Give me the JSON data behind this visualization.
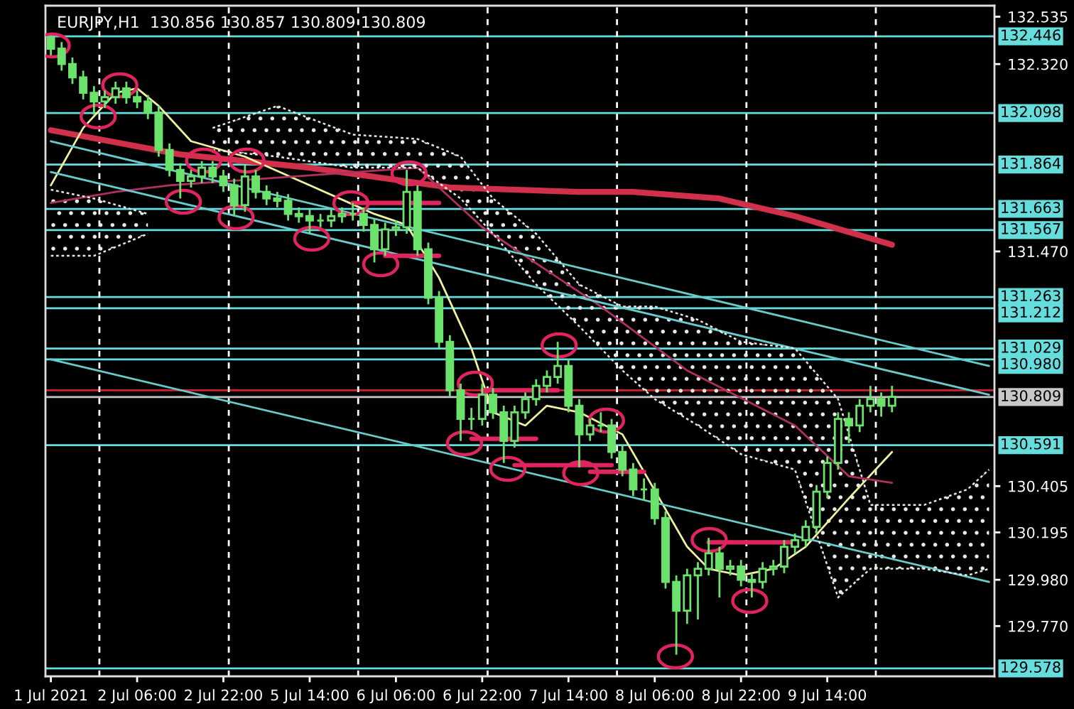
{
  "chart_data": {
    "type": "candlestick",
    "title": "EURJPY,H1  130.856 130.857 130.809 130.809",
    "color": "#6be26b",
    "categories": [
      "1 Jul 2021",
      null,
      null,
      null,
      null,
      null,
      null,
      null,
      "2 Jul 06:00",
      null,
      null,
      null,
      null,
      null,
      null,
      null,
      "2 Jul 22:00",
      null,
      null,
      null,
      null,
      null,
      null,
      null,
      "5 Jul 14:00",
      null,
      null,
      null,
      null,
      null,
      null,
      null,
      "6 Jul 06:00",
      null,
      null,
      null,
      null,
      null,
      null,
      null,
      "6 Jul 22:00",
      null,
      null,
      null,
      null,
      null,
      null,
      null,
      "7 Jul 14:00",
      null,
      null,
      null,
      null,
      null,
      null,
      null,
      "8 Jul 06:00",
      null,
      null,
      null,
      null,
      null,
      null,
      null,
      "8 Jul 22:00",
      null,
      null,
      null,
      null,
      null,
      null,
      null,
      "9 Jul 14:00",
      null,
      null,
      null,
      null,
      null,
      null,
      null,
      null,
      null,
      null,
      null,
      null,
      null,
      null,
      null
    ],
    "ohlc": [
      [
        132.44,
        132.45,
        132.36,
        132.39
      ],
      [
        132.39,
        132.42,
        132.29,
        132.32
      ],
      [
        132.32,
        132.35,
        132.23,
        132.26
      ],
      [
        132.26,
        132.29,
        132.16,
        132.19
      ],
      [
        132.19,
        132.22,
        132.09,
        132.15
      ],
      [
        132.15,
        132.2,
        132.12,
        132.17
      ],
      [
        132.17,
        132.24,
        132.14,
        132.21
      ],
      [
        132.21,
        132.24,
        132.14,
        132.17
      ],
      [
        132.17,
        132.2,
        132.12,
        132.15
      ],
      [
        132.15,
        132.18,
        132.07,
        132.1
      ],
      [
        132.1,
        132.13,
        131.9,
        131.93
      ],
      [
        131.93,
        131.96,
        131.81,
        131.84
      ],
      [
        131.84,
        131.87,
        131.71,
        131.79
      ],
      [
        131.79,
        131.84,
        131.76,
        131.81
      ],
      [
        131.81,
        131.88,
        131.78,
        131.85
      ],
      [
        131.85,
        131.88,
        131.78,
        131.81
      ],
      [
        131.81,
        131.84,
        131.74,
        131.77
      ],
      [
        131.77,
        131.8,
        131.63,
        131.68
      ],
      [
        131.68,
        131.86,
        131.65,
        131.81
      ],
      [
        131.81,
        131.84,
        131.71,
        131.74
      ],
      [
        131.74,
        131.77,
        131.68,
        131.71
      ],
      [
        131.71,
        131.74,
        131.67,
        131.7
      ],
      [
        131.7,
        131.73,
        131.61,
        131.64
      ],
      [
        131.64,
        131.67,
        131.6,
        131.63
      ],
      [
        131.63,
        131.66,
        131.55,
        131.61
      ],
      [
        131.61,
        131.64,
        131.58,
        131.61
      ],
      [
        131.61,
        131.66,
        131.58,
        131.63
      ],
      [
        131.63,
        131.67,
        131.6,
        131.64
      ],
      [
        131.64,
        131.69,
        131.61,
        131.64
      ],
      [
        131.64,
        131.67,
        131.56,
        131.59
      ],
      [
        131.59,
        131.62,
        131.42,
        131.48
      ],
      [
        131.48,
        131.6,
        131.45,
        131.57
      ],
      [
        131.57,
        131.61,
        131.54,
        131.58
      ],
      [
        131.58,
        131.84,
        131.55,
        131.74
      ],
      [
        131.74,
        131.77,
        131.45,
        131.48
      ],
      [
        131.48,
        131.51,
        131.23,
        131.26
      ],
      [
        131.26,
        131.29,
        131.03,
        131.06
      ],
      [
        131.06,
        131.09,
        130.81,
        130.84
      ],
      [
        130.84,
        130.87,
        130.61,
        130.71
      ],
      [
        130.71,
        130.76,
        130.66,
        130.71
      ],
      [
        130.71,
        130.87,
        130.68,
        130.82
      ],
      [
        130.82,
        130.85,
        130.71,
        130.74
      ],
      [
        130.74,
        130.77,
        130.51,
        130.61
      ],
      [
        130.61,
        130.77,
        130.58,
        130.74
      ],
      [
        130.74,
        130.83,
        130.71,
        130.8
      ],
      [
        130.8,
        130.89,
        130.77,
        130.86
      ],
      [
        130.86,
        130.93,
        130.83,
        130.9
      ],
      [
        130.9,
        131.06,
        130.87,
        130.95
      ],
      [
        130.95,
        130.98,
        130.74,
        130.77
      ],
      [
        130.77,
        130.8,
        130.49,
        130.64
      ],
      [
        130.64,
        130.71,
        130.61,
        130.68
      ],
      [
        130.68,
        130.74,
        130.65,
        130.68
      ],
      [
        130.68,
        130.71,
        130.53,
        130.56
      ],
      [
        130.56,
        130.59,
        130.45,
        130.48
      ],
      [
        130.48,
        130.51,
        130.36,
        130.39
      ],
      [
        130.39,
        130.44,
        130.34,
        130.39
      ],
      [
        130.39,
        130.42,
        130.23,
        130.26
      ],
      [
        130.26,
        130.29,
        129.94,
        129.97
      ],
      [
        129.97,
        130.0,
        129.64,
        129.84
      ],
      [
        129.84,
        130.03,
        129.78,
        130.0
      ],
      [
        130.0,
        130.06,
        129.8,
        130.03
      ],
      [
        130.03,
        130.17,
        130.0,
        130.1
      ],
      [
        130.1,
        130.13,
        129.9,
        130.03
      ],
      [
        130.03,
        130.07,
        130.0,
        130.04
      ],
      [
        130.04,
        130.07,
        129.95,
        129.98
      ],
      [
        129.98,
        130.01,
        129.9,
        129.97
      ],
      [
        129.97,
        130.06,
        129.94,
        130.03
      ],
      [
        130.03,
        130.07,
        130.0,
        130.04
      ],
      [
        130.04,
        130.16,
        130.01,
        130.13
      ],
      [
        130.13,
        130.19,
        130.1,
        130.16
      ],
      [
        130.16,
        130.25,
        130.13,
        130.22
      ],
      [
        130.22,
        130.41,
        130.19,
        130.38
      ],
      [
        130.38,
        130.54,
        130.35,
        130.51
      ],
      [
        130.51,
        130.74,
        130.48,
        130.71
      ],
      [
        130.71,
        130.74,
        130.6,
        130.68
      ],
      [
        130.68,
        130.8,
        130.65,
        130.77
      ],
      [
        130.77,
        130.86,
        130.74,
        130.8
      ],
      [
        130.8,
        130.83,
        130.72,
        130.77
      ],
      [
        130.77,
        130.86,
        130.74,
        130.81
      ],
      null,
      null,
      null,
      null,
      null,
      null,
      null,
      null,
      null
    ],
    "series": [
      {
        "type": "line",
        "color": "#d0304a",
        "values": [
          132.02,
          null,
          null,
          null,
          null,
          null,
          null,
          null,
          null,
          null,
          null,
          null,
          131.91,
          null,
          null,
          null,
          null,
          null,
          null,
          null,
          null,
          null,
          null,
          null,
          131.85,
          null,
          null,
          null,
          null,
          null,
          null,
          null,
          null,
          null,
          null,
          null,
          null,
          131.76,
          null,
          null,
          null,
          null,
          null,
          null,
          null,
          null,
          null,
          null,
          null,
          131.74,
          null,
          null,
          null,
          null,
          131.74,
          null,
          null,
          null,
          null,
          null,
          null,
          null,
          131.71,
          null,
          null,
          null,
          null,
          null,
          null,
          131.63,
          null,
          null,
          null,
          null,
          null,
          null,
          null,
          null,
          131.5,
          null,
          null,
          null,
          null,
          null,
          null,
          null,
          null,
          null
        ]
      },
      {
        "type": "line",
        "color": "#f0f0a0",
        "values": [
          131.77,
          null,
          null,
          132.03,
          null,
          null,
          132.19,
          null,
          132.21,
          null,
          132.13,
          null,
          null,
          131.97,
          null,
          null,
          null,
          null,
          131.9,
          null,
          null,
          null,
          null,
          null,
          131.77,
          null,
          null,
          null,
          null,
          null,
          131.64,
          null,
          null,
          131.59,
          null,
          null,
          131.35,
          null,
          null,
          131.03,
          null,
          130.74,
          null,
          null,
          130.68,
          null,
          130.77,
          null,
          null,
          130.74,
          null,
          null,
          null,
          130.64,
          null,
          null,
          null,
          null,
          null,
          130.13,
          null,
          130.03,
          null,
          null,
          130.0,
          null,
          null,
          130.03,
          null,
          null,
          130.13,
          null,
          null,
          null,
          130.35,
          null,
          null,
          null,
          130.56,
          null,
          null,
          null,
          null,
          null,
          null,
          null,
          null,
          null
        ]
      },
      {
        "type": "line",
        "color": "#b03060",
        "values": [
          131.69,
          null,
          null,
          null,
          null,
          null,
          131.74,
          null,
          null,
          null,
          null,
          131.77,
          null,
          null,
          null,
          null,
          null,
          null,
          null,
          null,
          null,
          null,
          null,
          null,
          null,
          null,
          null,
          null,
          null,
          null,
          null,
          null,
          null,
          null,
          131.85,
          null,
          null,
          null,
          null,
          null,
          131.58,
          null,
          null,
          null,
          null,
          null,
          null,
          null,
          null,
          null,
          null,
          131.22,
          null,
          null,
          null,
          null,
          null,
          null,
          null,
          130.93,
          null,
          null,
          null,
          null,
          null,
          null,
          null,
          null,
          null,
          130.68,
          null,
          null,
          null,
          null,
          130.45,
          null,
          null,
          null,
          130.42,
          null,
          null,
          null,
          null,
          null,
          null,
          null,
          null,
          null
        ]
      },
      {
        "type": "line",
        "color": "#66cccc",
        "values": [
          131.97,
          null,
          null,
          null,
          null,
          null,
          null,
          null,
          null,
          null,
          null,
          null,
          null,
          null,
          null,
          null,
          null,
          null,
          null,
          null,
          null,
          null,
          null,
          null,
          null,
          null,
          null,
          null,
          null,
          null,
          null,
          null,
          null,
          null,
          null,
          null,
          null,
          null,
          null,
          null,
          null,
          null,
          null,
          null,
          null,
          null,
          null,
          null,
          null,
          null,
          null,
          null,
          null,
          null,
          null,
          null,
          null,
          null,
          null,
          null,
          null,
          null,
          null,
          null,
          null,
          null,
          null,
          null,
          null,
          null,
          null,
          null,
          null,
          null,
          null,
          null,
          null,
          null,
          null,
          null,
          null,
          null,
          null,
          null,
          null,
          null,
          null,
          130.95
        ]
      },
      {
        "type": "line",
        "color": "#66cccc",
        "values": [
          131.83,
          null,
          null,
          null,
          null,
          null,
          null,
          null,
          null,
          null,
          null,
          null,
          null,
          null,
          null,
          null,
          null,
          null,
          null,
          null,
          null,
          null,
          null,
          null,
          null,
          null,
          null,
          null,
          null,
          null,
          null,
          null,
          null,
          null,
          null,
          null,
          null,
          null,
          null,
          null,
          null,
          null,
          null,
          null,
          null,
          null,
          null,
          null,
          null,
          null,
          null,
          null,
          null,
          null,
          null,
          null,
          null,
          null,
          null,
          null,
          null,
          null,
          null,
          null,
          null,
          null,
          null,
          null,
          null,
          null,
          null,
          null,
          null,
          null,
          null,
          null,
          null,
          null,
          null,
          null,
          null,
          null,
          null,
          null,
          null,
          null,
          null,
          130.82
        ]
      },
      {
        "type": "line",
        "color": "#66cccc",
        "values": [
          130.98,
          null,
          null,
          null,
          null,
          null,
          null,
          null,
          null,
          null,
          null,
          null,
          null,
          null,
          null,
          null,
          null,
          null,
          null,
          null,
          null,
          null,
          null,
          null,
          null,
          null,
          null,
          null,
          null,
          null,
          null,
          null,
          null,
          null,
          null,
          null,
          null,
          null,
          null,
          null,
          null,
          null,
          null,
          null,
          null,
          null,
          null,
          null,
          null,
          null,
          null,
          null,
          null,
          null,
          null,
          null,
          null,
          null,
          null,
          null,
          null,
          null,
          null,
          null,
          null,
          null,
          null,
          null,
          null,
          null,
          null,
          null,
          null,
          null,
          null,
          null,
          null,
          null,
          null,
          null,
          null,
          null,
          null,
          null,
          null,
          null,
          null,
          129.97
        ]
      },
      {
        "type": "line",
        "color": "#e8e8e8",
        "line_style": "dotted",
        "values": [
          null,
          null,
          null,
          null,
          null,
          null,
          null,
          null,
          null,
          null,
          null,
          null,
          null,
          null,
          null,
          132.03,
          null,
          null,
          null,
          null,
          null,
          132.13,
          null,
          null,
          null,
          null,
          null,
          null,
          132.0,
          null,
          null,
          null,
          null,
          null,
          131.98,
          null,
          null,
          null,
          131.9,
          null,
          null,
          131.71,
          null,
          null,
          null,
          131.55,
          null,
          null,
          null,
          131.32,
          null,
          null,
          null,
          131.22,
          null,
          null,
          131.22,
          null,
          null,
          null,
          131.16,
          null,
          null,
          null,
          131.06,
          null,
          null,
          null,
          null,
          131.03,
          null,
          null,
          null,
          130.8,
          null,
          null,
          130.32,
          null,
          null,
          null,
          null,
          130.32,
          null,
          null,
          null,
          130.39,
          null,
          130.48
        ]
      },
      {
        "type": "line",
        "color": "#e8e8e8",
        "line_style": "dotted",
        "values": [
          null,
          null,
          null,
          null,
          null,
          null,
          null,
          null,
          null,
          null,
          null,
          null,
          null,
          null,
          null,
          131.93,
          null,
          null,
          null,
          null,
          null,
          131.9,
          null,
          null,
          null,
          null,
          null,
          null,
          131.85,
          null,
          null,
          null,
          null,
          null,
          131.85,
          null,
          null,
          null,
          131.71,
          null,
          null,
          131.55,
          null,
          null,
          null,
          131.32,
          null,
          null,
          null,
          131.13,
          null,
          null,
          null,
          130.93,
          null,
          null,
          130.8,
          null,
          null,
          null,
          130.68,
          null,
          null,
          null,
          130.55,
          null,
          null,
          null,
          null,
          130.48,
          null,
          null,
          null,
          129.9,
          null,
          null,
          130.03,
          null,
          null,
          null,
          null,
          130.03,
          null,
          null,
          null,
          130.0,
          null,
          130.03
        ]
      },
      {
        "type": "line",
        "color": "#e8e8e8",
        "line_style": "dotted",
        "values": [
          131.75,
          null,
          null,
          null,
          131.71,
          null,
          null,
          null,
          null,
          131.64,
          null,
          null,
          null,
          null,
          null,
          null,
          null,
          null,
          null,
          null,
          null,
          null,
          null,
          null,
          null,
          null,
          null,
          null,
          null,
          null,
          null,
          null,
          null,
          null,
          null,
          null,
          null,
          null,
          null,
          null,
          null,
          null,
          null,
          null,
          null,
          null,
          null,
          null,
          null,
          null,
          null,
          null,
          null,
          null,
          null,
          null,
          null,
          null,
          null,
          null,
          null,
          null,
          null,
          null,
          null,
          null,
          null,
          null,
          null,
          null,
          null,
          null,
          null,
          null,
          null,
          null,
          null,
          null,
          null,
          null,
          null,
          null,
          null,
          null,
          null,
          null,
          null,
          null
        ]
      },
      {
        "type": "line",
        "color": "#e8e8e8",
        "line_style": "dotted",
        "values": [
          131.45,
          null,
          null,
          null,
          131.45,
          null,
          null,
          null,
          null,
          131.55,
          null,
          null,
          null,
          null,
          null,
          null,
          null,
          null,
          null,
          null,
          null,
          null,
          null,
          null,
          null,
          null,
          null,
          null,
          null,
          null,
          null,
          null,
          null,
          null,
          null,
          null,
          null,
          null,
          null,
          null,
          null,
          null,
          null,
          null,
          null,
          null,
          null,
          null,
          null,
          null,
          null,
          null,
          null,
          null,
          null,
          null,
          null,
          null,
          null,
          null,
          null,
          null,
          null,
          null,
          null,
          null,
          null,
          null,
          null,
          null,
          null,
          null,
          null,
          null,
          null,
          null,
          null,
          null,
          null,
          null,
          null,
          null,
          null,
          null,
          null,
          null,
          null,
          null
        ]
      },
      {
        "type": "line",
        "color": "#e0245e",
        "values": [
          null,
          null,
          null,
          null,
          null,
          null,
          null,
          null,
          null,
          null,
          null,
          null,
          null,
          null,
          null,
          null,
          null,
          null,
          null,
          null,
          null,
          null,
          null,
          null,
          null,
          null,
          null,
          null,
          131.69,
          null,
          null,
          null,
          null,
          null,
          null,
          null,
          131.69,
          null,
          null,
          null,
          null,
          null,
          null,
          null,
          null,
          null,
          null,
          null,
          null,
          null,
          null,
          null,
          null,
          null,
          null,
          null,
          null,
          null,
          null,
          null,
          null,
          null,
          null,
          null,
          null,
          null,
          null,
          null,
          null,
          null,
          null,
          null,
          null,
          null,
          null,
          null,
          null,
          null,
          null,
          null,
          null,
          null,
          null,
          null,
          null,
          null,
          null,
          null
        ]
      },
      {
        "type": "line",
        "color": "#e0245e",
        "values": [
          null,
          null,
          null,
          null,
          null,
          null,
          null,
          null,
          null,
          null,
          null,
          null,
          null,
          null,
          null,
          null,
          null,
          null,
          null,
          null,
          null,
          null,
          null,
          null,
          null,
          null,
          null,
          null,
          null,
          null,
          null,
          131.45,
          null,
          null,
          null,
          null,
          131.45,
          null,
          null,
          null,
          null,
          null,
          null,
          null,
          null,
          null,
          null,
          null,
          null,
          null,
          null,
          null,
          null,
          null,
          null,
          null,
          null,
          null,
          null,
          null,
          null,
          null,
          null,
          null,
          null,
          null,
          null,
          null,
          null,
          null,
          null,
          null,
          null,
          null,
          null,
          null,
          null,
          null,
          null,
          null,
          null,
          null,
          null,
          null,
          null,
          null,
          null,
          null
        ]
      },
      {
        "type": "line",
        "color": "#e0245e",
        "values": [
          null,
          null,
          null,
          null,
          null,
          null,
          null,
          null,
          null,
          null,
          null,
          null,
          null,
          null,
          null,
          null,
          null,
          null,
          null,
          null,
          null,
          null,
          null,
          null,
          null,
          null,
          null,
          null,
          null,
          null,
          null,
          null,
          null,
          null,
          null,
          null,
          null,
          null,
          null,
          null,
          130.84,
          null,
          null,
          null,
          null,
          null,
          null,
          130.84,
          null,
          null,
          null,
          null,
          null,
          null,
          null,
          null,
          null,
          null,
          null,
          null,
          null,
          null,
          null,
          null,
          null,
          null,
          null,
          null,
          null,
          null,
          null,
          null,
          null,
          null,
          null,
          null,
          null,
          null,
          null,
          null,
          null,
          null,
          null,
          null,
          null,
          null,
          null,
          null
        ]
      },
      {
        "type": "line",
        "color": "#e0245e",
        "values": [
          null,
          null,
          null,
          null,
          null,
          null,
          null,
          null,
          null,
          null,
          null,
          null,
          null,
          null,
          null,
          null,
          null,
          null,
          null,
          null,
          null,
          null,
          null,
          null,
          null,
          null,
          null,
          null,
          null,
          null,
          null,
          null,
          null,
          null,
          null,
          null,
          null,
          null,
          null,
          130.62,
          null,
          null,
          null,
          null,
          null,
          130.62,
          null,
          null,
          null,
          null,
          null,
          null,
          null,
          null,
          null,
          null,
          null,
          null,
          null,
          null,
          null,
          null,
          null,
          null,
          null,
          null,
          null,
          null,
          null,
          null,
          null,
          null,
          null,
          null,
          null,
          null,
          null,
          null,
          null,
          null,
          null,
          null,
          null,
          null,
          null,
          null,
          null,
          null
        ]
      },
      {
        "type": "line",
        "color": "#e0245e",
        "values": [
          null,
          null,
          null,
          null,
          null,
          null,
          null,
          null,
          null,
          null,
          null,
          null,
          null,
          null,
          null,
          null,
          null,
          null,
          null,
          null,
          null,
          null,
          null,
          null,
          null,
          null,
          null,
          null,
          null,
          null,
          null,
          null,
          null,
          null,
          null,
          null,
          null,
          null,
          null,
          null,
          null,
          null,
          null,
          130.5,
          null,
          null,
          null,
          null,
          null,
          null,
          null,
          null,
          130.5,
          null,
          null,
          null,
          null,
          null,
          null,
          null,
          null,
          null,
          null,
          null,
          null,
          null,
          null,
          null,
          null,
          null,
          null,
          null,
          null,
          null,
          null,
          null,
          null,
          null,
          null,
          null,
          null,
          null,
          null,
          null,
          null,
          null,
          null,
          null
        ]
      },
      {
        "type": "line",
        "color": "#e0245e",
        "values": [
          null,
          null,
          null,
          null,
          null,
          null,
          null,
          null,
          null,
          null,
          null,
          null,
          null,
          null,
          null,
          null,
          null,
          null,
          null,
          null,
          null,
          null,
          null,
          null,
          null,
          null,
          null,
          null,
          null,
          null,
          null,
          null,
          null,
          null,
          null,
          null,
          null,
          null,
          null,
          null,
          null,
          null,
          null,
          null,
          null,
          null,
          null,
          null,
          null,
          null,
          130.47,
          null,
          null,
          null,
          null,
          130.47,
          null,
          null,
          null,
          null,
          null,
          null,
          null,
          null,
          null,
          null,
          null,
          null,
          null,
          null,
          null,
          null,
          null,
          null,
          null,
          null,
          null,
          null,
          null,
          null,
          null,
          null,
          null,
          null,
          null,
          null,
          null,
          null
        ]
      },
      {
        "type": "line",
        "color": "#e0245e",
        "values": [
          null,
          null,
          null,
          null,
          null,
          null,
          null,
          null,
          null,
          null,
          null,
          null,
          null,
          null,
          null,
          null,
          null,
          null,
          null,
          null,
          null,
          null,
          null,
          null,
          null,
          null,
          null,
          null,
          null,
          null,
          null,
          null,
          null,
          null,
          null,
          null,
          null,
          null,
          null,
          null,
          null,
          null,
          null,
          null,
          null,
          null,
          null,
          null,
          null,
          null,
          null,
          null,
          null,
          null,
          null,
          null,
          null,
          null,
          null,
          null,
          null,
          130.15,
          null,
          null,
          null,
          null,
          null,
          null,
          null,
          130.15,
          null,
          null,
          null,
          null,
          null,
          null,
          null,
          null,
          null,
          null,
          null,
          null,
          null,
          null,
          null,
          null,
          null,
          null
        ]
      }
    ],
    "ref_lines": [
      {
        "axis": "y",
        "value": 132.446,
        "label": "132.446",
        "color": "#66dddd"
      },
      {
        "axis": "y",
        "value": 132.098,
        "label": "132.098",
        "color": "#66dddd"
      },
      {
        "axis": "y",
        "value": 131.864,
        "label": "131.864",
        "color": "#66dddd"
      },
      {
        "axis": "y",
        "value": 131.663,
        "label": "131.663",
        "color": "#66dddd"
      },
      {
        "axis": "y",
        "value": 131.567,
        "label": "131.567",
        "color": "#66dddd"
      },
      {
        "axis": "y",
        "value": 131.263,
        "label": "131.263",
        "color": "#66dddd"
      },
      {
        "axis": "y",
        "value": 131.212,
        "label": "131.212",
        "color": "#66dddd"
      },
      {
        "axis": "y",
        "value": 131.029,
        "label": "131.029",
        "color": "#66dddd"
      },
      {
        "axis": "y",
        "value": 130.98,
        "label": "130.980",
        "color": "#66dddd"
      },
      {
        "axis": "y",
        "value": 130.591,
        "label": "130.591",
        "color": "#66dddd"
      },
      {
        "axis": "y",
        "value": 129.578,
        "label": "129.578",
        "color": "#66dddd"
      },
      {
        "axis": "y",
        "value": 130.84,
        "color": "#d02030"
      },
      {
        "axis": "y",
        "value": 130.809,
        "label": "130.809",
        "color": "#c8c8c8"
      }
    ],
    "ylim": [
      129.542,
      132.585
    ],
    "yticks": [
      {
        "value": 132.535,
        "label": "132.535"
      },
      {
        "value": 132.32,
        "label": "132.320"
      },
      {
        "value": 131.47,
        "label": "131.470"
      },
      {
        "value": 130.405,
        "label": "130.405"
      },
      {
        "value": 130.195,
        "label": "130.195"
      },
      {
        "value": 129.98,
        "label": "129.980"
      },
      {
        "value": 129.77,
        "label": "129.770"
      }
    ]
  }
}
